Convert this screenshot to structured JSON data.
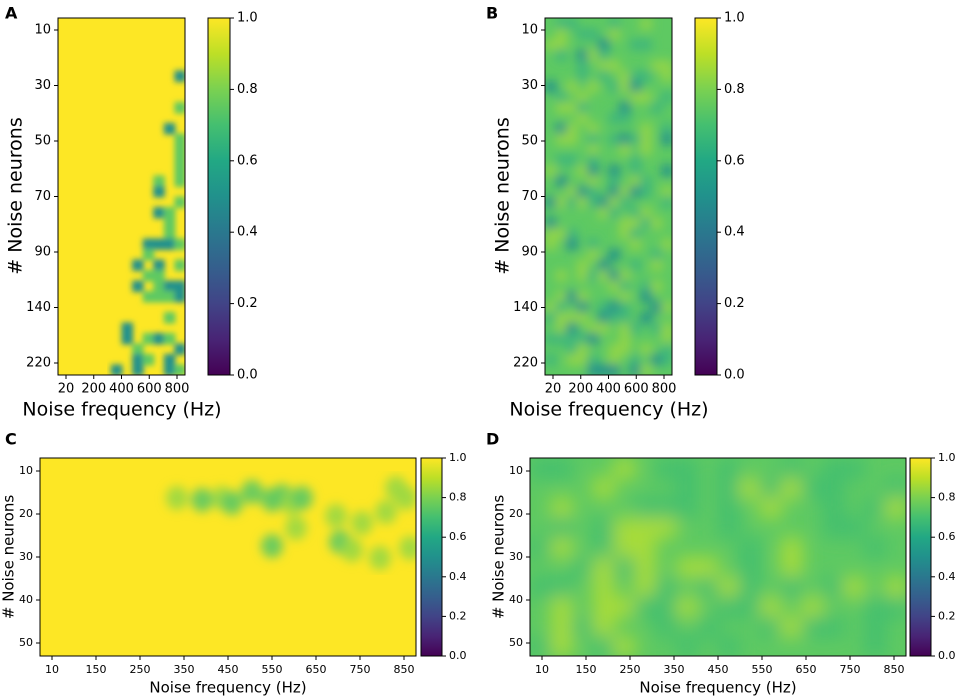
{
  "colors": {
    "yellow": "#fde725",
    "green": "#5ec962",
    "teal": "#21918c",
    "blue": "#3b528b",
    "purple": "#440154"
  },
  "chart_data": [
    {
      "panel": "A",
      "type": "heatmap",
      "xlabel": "Noise frequency (Hz)",
      "ylabel": "# Noise neurons",
      "x_ticks": [
        "20",
        "200",
        "400",
        "600",
        "800"
      ],
      "y_ticks": [
        "10",
        "30",
        "50",
        "70",
        "90",
        "140",
        "220"
      ],
      "colorbar": {
        "min": 0.0,
        "max": 1.0,
        "ticks": [
          "0.0",
          "0.2",
          "0.4",
          "0.6",
          "0.8",
          "1.0"
        ]
      },
      "colormap": "viridis",
      "description_value_range": [
        0.55,
        1.0
      ]
    },
    {
      "panel": "B",
      "type": "heatmap",
      "xlabel": "Noise frequency (Hz)",
      "ylabel": "# Noise neurons",
      "x_ticks": [
        "20",
        "200",
        "400",
        "600",
        "800"
      ],
      "y_ticks": [
        "10",
        "30",
        "50",
        "70",
        "90",
        "140",
        "220"
      ],
      "colorbar": {
        "min": 0.0,
        "max": 1.0,
        "ticks": [
          "0.0",
          "0.2",
          "0.4",
          "0.6",
          "0.8",
          "1.0"
        ]
      },
      "colormap": "viridis",
      "description_value_range": [
        0.55,
        0.8
      ]
    },
    {
      "panel": "C",
      "type": "heatmap",
      "xlabel": "Noise frequency (Hz)",
      "ylabel": "# Noise neurons",
      "x_ticks": [
        "10",
        "150",
        "250",
        "350",
        "450",
        "550",
        "650",
        "750",
        "850"
      ],
      "y_ticks": [
        "10",
        "20",
        "30",
        "40",
        "50"
      ],
      "colorbar": {
        "min": 0.0,
        "max": 1.0,
        "ticks": [
          "0.0",
          "0.2",
          "0.4",
          "0.6",
          "0.8",
          "1.0"
        ]
      },
      "colormap": "viridis",
      "description_value_range": [
        0.7,
        1.0
      ]
    },
    {
      "panel": "D",
      "type": "heatmap",
      "xlabel": "Noise frequency (Hz)",
      "ylabel": "# Noise neurons",
      "x_ticks": [
        "10",
        "150",
        "250",
        "350",
        "450",
        "550",
        "650",
        "750",
        "850"
      ],
      "y_ticks": [
        "10",
        "20",
        "30",
        "40",
        "50"
      ],
      "colorbar": {
        "min": 0.0,
        "max": 1.0,
        "ticks": [
          "0.0",
          "0.2",
          "0.4",
          "0.6",
          "0.8",
          "1.0"
        ]
      },
      "colormap": "viridis",
      "description_value_range": [
        0.75,
        0.85
      ]
    }
  ]
}
